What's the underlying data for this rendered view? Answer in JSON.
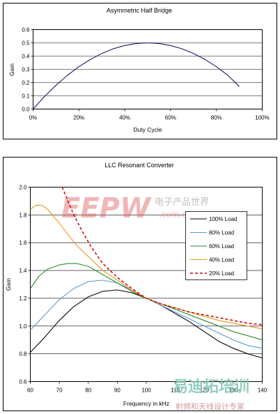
{
  "chart_data": [
    {
      "type": "line",
      "title": "Asymmetric Half Bridge",
      "xlabel": "Duty Cycle",
      "ylabel": "Gain",
      "xlim": [
        0,
        100
      ],
      "ylim": [
        0,
        0.6
      ],
      "xticks": [
        "0%",
        "20%",
        "40%",
        "60%",
        "80%",
        "100%"
      ],
      "xtick_values": [
        0,
        20,
        40,
        60,
        80,
        100
      ],
      "yticks": [
        "0.0",
        "0.1",
        "0.2",
        "0.3",
        "0.4",
        "0.5",
        "0.6"
      ],
      "ytick_values": [
        0,
        0.1,
        0.2,
        0.3,
        0.4,
        0.5,
        0.6
      ],
      "grid": "horizontal",
      "series": [
        {
          "color": "#1a1a66",
          "x": [
            0,
            5,
            10,
            15,
            20,
            25,
            30,
            35,
            40,
            45,
            50,
            55,
            60,
            65,
            70,
            75,
            80,
            85,
            90
          ],
          "y": [
            0,
            0.095,
            0.18,
            0.255,
            0.32,
            0.375,
            0.42,
            0.455,
            0.48,
            0.495,
            0.5,
            0.495,
            0.48,
            0.455,
            0.42,
            0.375,
            0.32,
            0.255,
            0.17
          ]
        }
      ]
    },
    {
      "type": "line",
      "title": "LLC Resonant Converter",
      "xlabel": "Frequency in kHz",
      "ylabel": "Gain",
      "xlim": [
        60,
        140
      ],
      "ylim": [
        0.6,
        2.0
      ],
      "xticks": [
        "60",
        "70",
        "80",
        "90",
        "100",
        "110",
        "120",
        "130",
        "140"
      ],
      "xtick_values": [
        60,
        70,
        80,
        90,
        100,
        110,
        120,
        130,
        140
      ],
      "yticks": [
        "0.6",
        "0.8",
        "1.0",
        "1.2",
        "1.4",
        "1.6",
        "1.8",
        "2.0"
      ],
      "ytick_values": [
        0.6,
        0.8,
        1.0,
        1.2,
        1.4,
        1.6,
        1.8,
        2.0
      ],
      "grid": "horizontal",
      "legend": "right",
      "series": [
        {
          "name": "100% Load",
          "color": "#000000",
          "dash": "",
          "x": [
            60,
            65,
            70,
            75,
            80,
            85,
            90,
            95,
            100,
            105,
            110,
            115,
            120,
            125,
            130,
            135,
            140
          ],
          "y": [
            0.81,
            0.92,
            1.04,
            1.14,
            1.21,
            1.25,
            1.26,
            1.24,
            1.2,
            1.15,
            1.09,
            1.03,
            0.96,
            0.89,
            0.84,
            0.8,
            0.77
          ]
        },
        {
          "name": "80% Load",
          "color": "#5b9bd5",
          "dash": "",
          "x": [
            60,
            65,
            70,
            75,
            80,
            85,
            90,
            95,
            100,
            105,
            110,
            115,
            120,
            125,
            130,
            135,
            140
          ],
          "y": [
            0.97,
            1.08,
            1.19,
            1.27,
            1.32,
            1.33,
            1.31,
            1.26,
            1.2,
            1.15,
            1.1,
            1.05,
            1.0,
            0.95,
            0.9,
            0.86,
            0.84
          ]
        },
        {
          "name": "60% Load",
          "color": "#2e8b2e",
          "dash": "",
          "x": [
            60,
            63,
            66,
            70,
            73,
            76,
            80,
            85,
            90,
            95,
            100,
            105,
            110,
            115,
            120,
            125,
            130,
            135,
            140
          ],
          "y": [
            1.27,
            1.36,
            1.41,
            1.44,
            1.45,
            1.45,
            1.43,
            1.37,
            1.31,
            1.25,
            1.2,
            1.16,
            1.12,
            1.08,
            1.04,
            1.0,
            0.96,
            0.93,
            0.9
          ]
        },
        {
          "name": "40% Load",
          "color": "#e8961e",
          "dash": "",
          "x": [
            60,
            62,
            64,
            66,
            68,
            70,
            73,
            76,
            80,
            85,
            90,
            95,
            100,
            105,
            110,
            115,
            120,
            125,
            130,
            135,
            140
          ],
          "y": [
            1.84,
            1.87,
            1.87,
            1.84,
            1.79,
            1.74,
            1.66,
            1.58,
            1.5,
            1.4,
            1.33,
            1.26,
            1.2,
            1.16,
            1.13,
            1.1,
            1.07,
            1.04,
            1.02,
            1.0,
            0.98
          ]
        },
        {
          "name": "20% Load",
          "color": "#cc0000",
          "dash": "4,3",
          "x": [
            71,
            73,
            75,
            78,
            81,
            85,
            90,
            95,
            100,
            105,
            110,
            115,
            120,
            125,
            130,
            135,
            140
          ],
          "y": [
            2.0,
            1.9,
            1.8,
            1.68,
            1.57,
            1.45,
            1.35,
            1.27,
            1.2,
            1.16,
            1.13,
            1.1,
            1.08,
            1.06,
            1.04,
            1.02,
            1.01
          ]
        }
      ]
    }
  ],
  "watermark": {
    "brand": "EEPW",
    "domain": ".com.cn",
    "cn_tagline": "电子产品世界",
    "bottom_main": "易迪拓培训",
    "bottom_sub": "射频和天线设计专家"
  }
}
